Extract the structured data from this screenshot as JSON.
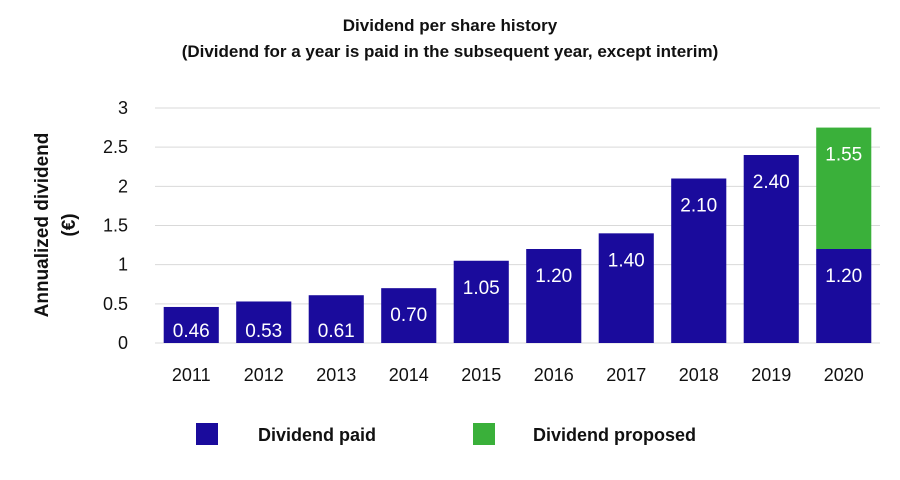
{
  "chart_data": {
    "type": "bar",
    "stacked": true,
    "title": "Dividend per share history",
    "subtitle": "(Dividend for a year is paid in the subsequent year, except interim)",
    "xlabel": "",
    "ylabel_lines": [
      "Annualized dividend",
      "(€)"
    ],
    "ylim": [
      0,
      3
    ],
    "yticks": [
      "0",
      "0.5",
      "1",
      "1.5",
      "2",
      "2.5",
      "3"
    ],
    "ytick_values": [
      0,
      0.5,
      1,
      1.5,
      2,
      2.5,
      3
    ],
    "grid": true,
    "legend_position": "bottom",
    "categories": [
      "2011",
      "2012",
      "2013",
      "2014",
      "2015",
      "2016",
      "2017",
      "2018",
      "2019",
      "2020"
    ],
    "series": [
      {
        "name": "Dividend paid",
        "color": "#1a0b9c",
        "values": [
          0.46,
          0.53,
          0.61,
          0.7,
          1.05,
          1.2,
          1.4,
          2.1,
          2.4,
          1.2
        ],
        "labels": [
          "0.46",
          "0.53",
          "0.61",
          "0.70",
          "1.05",
          "1.20",
          "1.40",
          "2.10",
          "2.40",
          "1.20"
        ]
      },
      {
        "name": "Dividend proposed",
        "color": "#3ab03a",
        "values": [
          0,
          0,
          0,
          0,
          0,
          0,
          0,
          0,
          0,
          1.55
        ],
        "labels": [
          "",
          "",
          "",
          "",
          "",
          "",
          "",
          "",
          "",
          "1.55"
        ]
      }
    ]
  }
}
